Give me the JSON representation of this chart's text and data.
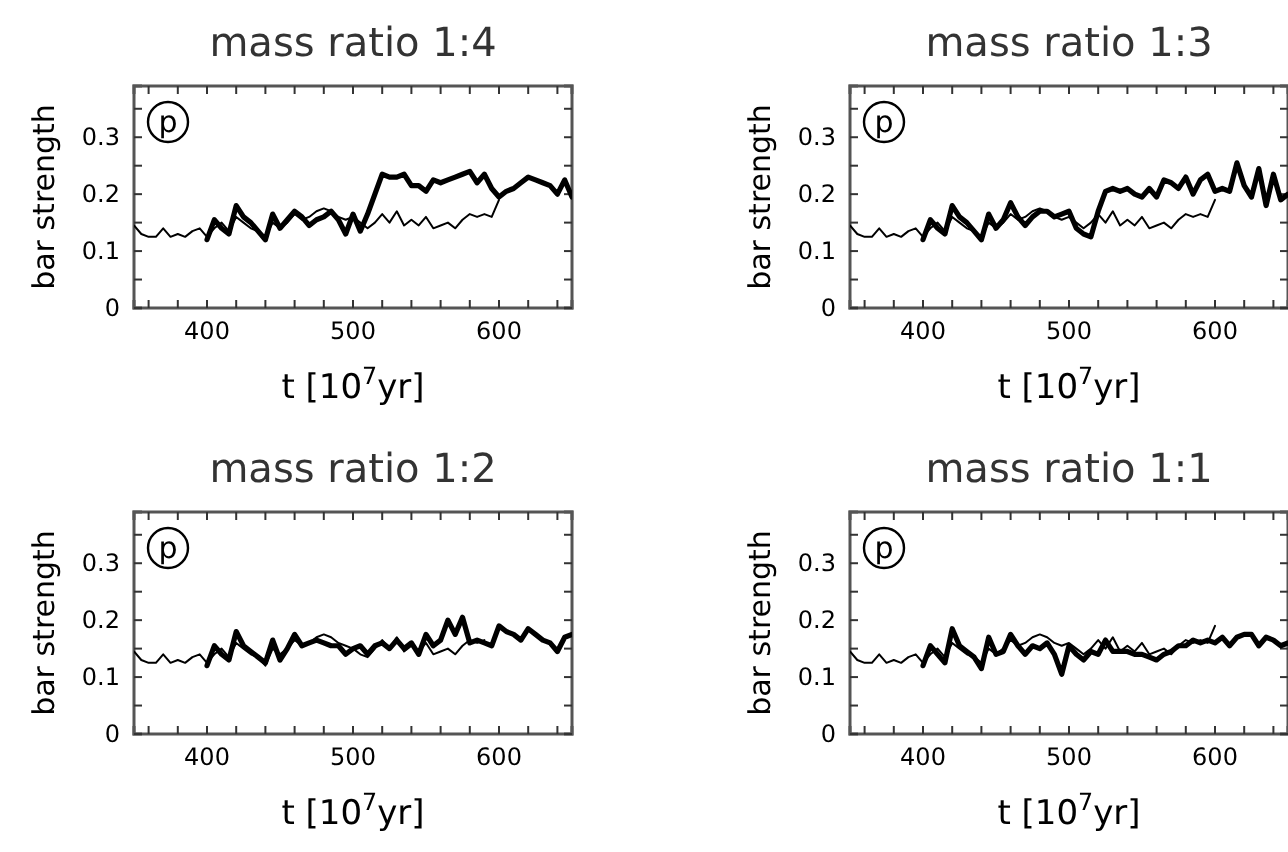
{
  "chart_data": [
    {
      "type": "line",
      "title": "mass ratio 1:4",
      "xlabel": "t [10$^{7}$yr]",
      "ylabel": "bar strength",
      "annotations": [
        "p"
      ],
      "xlim": [
        350,
        650
      ],
      "ylim": [
        0,
        0.39
      ],
      "xticks": [
        {
          "value": 360,
          "label": null
        },
        {
          "value": 380,
          "label": null
        },
        400,
        {
          "value": 420,
          "label": null
        },
        {
          "value": 440,
          "label": null
        },
        {
          "value": 460,
          "label": null
        },
        {
          "value": 480,
          "label": null
        },
        500,
        {
          "value": 520,
          "label": null
        },
        {
          "value": 540,
          "label": null
        },
        {
          "value": 560,
          "label": null
        },
        {
          "value": 580,
          "label": null
        },
        600,
        {
          "value": 620,
          "label": null
        },
        {
          "value": 640,
          "label": null
        }
      ],
      "yticks": [
        0,
        {
          "value": 0.05,
          "label": null
        },
        0.1,
        {
          "value": 0.15,
          "label": null
        },
        0.2,
        {
          "value": 0.25,
          "label": null
        },
        0.3,
        {
          "value": 0.35,
          "label": null
        }
      ],
      "grid": false,
      "marker": "none",
      "line_style": "solid",
      "series": [
        {
          "color": "#000000",
          "x": [
            350,
            355,
            360,
            365,
            370,
            375,
            380,
            385,
            390,
            395,
            400,
            405,
            410,
            415,
            420,
            425,
            430,
            435,
            440,
            445,
            450,
            455,
            460,
            465,
            470,
            475,
            480,
            485,
            490,
            495,
            500,
            505,
            510,
            515,
            520,
            525,
            530,
            535,
            540,
            545,
            550,
            555,
            560,
            565,
            570,
            575,
            580,
            585,
            590,
            595,
            600
          ],
          "values": [
            0.145,
            0.13,
            0.125,
            0.125,
            0.14,
            0.125,
            0.13,
            0.125,
            0.135,
            0.14,
            0.125,
            0.14,
            0.15,
            0.135,
            0.16,
            0.15,
            0.14,
            0.135,
            0.125,
            0.15,
            0.14,
            0.15,
            0.165,
            0.155,
            0.16,
            0.17,
            0.175,
            0.17,
            0.16,
            0.155,
            0.16,
            0.15,
            0.14,
            0.15,
            0.165,
            0.15,
            0.17,
            0.145,
            0.155,
            0.145,
            0.16,
            0.14,
            0.145,
            0.15,
            0.14,
            0.155,
            0.165,
            0.16,
            0.165,
            0.16,
            0.19
          ]
        },
        {
          "color": "#000000",
          "x": [
            400,
            405,
            410,
            415,
            420,
            425,
            430,
            435,
            440,
            445,
            450,
            455,
            460,
            465,
            470,
            475,
            480,
            485,
            490,
            495,
            500,
            505,
            510,
            515,
            520,
            525,
            530,
            535,
            540,
            545,
            550,
            555,
            560,
            565,
            570,
            575,
            580,
            585,
            590,
            595,
            600,
            605,
            610,
            615,
            620,
            625,
            630,
            635,
            640,
            645,
            650
          ],
          "values": [
            0.12,
            0.155,
            0.14,
            0.13,
            0.18,
            0.16,
            0.15,
            0.135,
            0.12,
            0.165,
            0.14,
            0.155,
            0.17,
            0.16,
            0.145,
            0.155,
            0.16,
            0.17,
            0.155,
            0.13,
            0.165,
            0.135,
            0.165,
            0.2,
            0.235,
            0.23,
            0.23,
            0.235,
            0.215,
            0.215,
            0.205,
            0.225,
            0.22,
            0.225,
            0.23,
            0.235,
            0.24,
            0.22,
            0.235,
            0.21,
            0.195,
            0.205,
            0.21,
            0.22,
            0.23,
            0.225,
            0.22,
            0.215,
            0.2,
            0.225,
            0.195
          ]
        }
      ]
    },
    {
      "type": "line",
      "title": "mass ratio 1:3",
      "xlabel": "t [10$^{7}$yr]",
      "ylabel": "bar strength",
      "annotations": [
        "p"
      ],
      "xlim": [
        350,
        650
      ],
      "ylim": [
        0,
        0.39
      ],
      "xticks": [
        {
          "value": 360,
          "label": null
        },
        {
          "value": 380,
          "label": null
        },
        400,
        {
          "value": 420,
          "label": null
        },
        {
          "value": 440,
          "label": null
        },
        {
          "value": 460,
          "label": null
        },
        {
          "value": 480,
          "label": null
        },
        500,
        {
          "value": 520,
          "label": null
        },
        {
          "value": 540,
          "label": null
        },
        {
          "value": 560,
          "label": null
        },
        {
          "value": 580,
          "label": null
        },
        600,
        {
          "value": 620,
          "label": null
        },
        {
          "value": 640,
          "label": null
        }
      ],
      "yticks": [
        0,
        {
          "value": 0.05,
          "label": null
        },
        0.1,
        {
          "value": 0.15,
          "label": null
        },
        0.2,
        {
          "value": 0.25,
          "label": null
        },
        0.3,
        {
          "value": 0.35,
          "label": null
        }
      ],
      "grid": false,
      "marker": "none",
      "line_style": "solid",
      "series": [
        {
          "color": "#000000",
          "x": [
            350,
            355,
            360,
            365,
            370,
            375,
            380,
            385,
            390,
            395,
            400,
            405,
            410,
            415,
            420,
            425,
            430,
            435,
            440,
            445,
            450,
            455,
            460,
            465,
            470,
            475,
            480,
            485,
            490,
            495,
            500,
            505,
            510,
            515,
            520,
            525,
            530,
            535,
            540,
            545,
            550,
            555,
            560,
            565,
            570,
            575,
            580,
            585,
            590,
            595,
            600
          ],
          "values": [
            0.145,
            0.13,
            0.125,
            0.125,
            0.14,
            0.125,
            0.13,
            0.125,
            0.135,
            0.14,
            0.125,
            0.14,
            0.15,
            0.135,
            0.16,
            0.15,
            0.14,
            0.135,
            0.125,
            0.15,
            0.14,
            0.15,
            0.165,
            0.155,
            0.16,
            0.17,
            0.175,
            0.17,
            0.16,
            0.155,
            0.16,
            0.15,
            0.14,
            0.15,
            0.165,
            0.15,
            0.17,
            0.145,
            0.155,
            0.145,
            0.16,
            0.14,
            0.145,
            0.15,
            0.14,
            0.155,
            0.165,
            0.16,
            0.165,
            0.16,
            0.19
          ]
        },
        {
          "color": "#000000",
          "x": [
            400,
            405,
            410,
            415,
            420,
            425,
            430,
            435,
            440,
            445,
            450,
            455,
            460,
            465,
            470,
            475,
            480,
            485,
            490,
            495,
            500,
            505,
            510,
            515,
            520,
            525,
            530,
            535,
            540,
            545,
            550,
            555,
            560,
            565,
            570,
            575,
            580,
            585,
            590,
            595,
            600,
            605,
            610,
            615,
            620,
            625,
            630,
            635,
            640,
            645,
            650
          ],
          "values": [
            0.12,
            0.155,
            0.14,
            0.13,
            0.18,
            0.16,
            0.15,
            0.135,
            0.12,
            0.165,
            0.14,
            0.155,
            0.185,
            0.16,
            0.145,
            0.16,
            0.17,
            0.17,
            0.16,
            0.165,
            0.17,
            0.14,
            0.13,
            0.125,
            0.17,
            0.205,
            0.21,
            0.205,
            0.21,
            0.2,
            0.195,
            0.21,
            0.195,
            0.225,
            0.22,
            0.21,
            0.23,
            0.2,
            0.225,
            0.235,
            0.205,
            0.21,
            0.205,
            0.255,
            0.215,
            0.195,
            0.245,
            0.18,
            0.235,
            0.19,
            0.2
          ]
        }
      ]
    },
    {
      "type": "line",
      "title": "mass ratio 1:2",
      "xlabel": "t [10$^{7}$yr]",
      "ylabel": "bar strength",
      "annotations": [
        "p"
      ],
      "xlim": [
        350,
        650
      ],
      "ylim": [
        0,
        0.39
      ],
      "xticks": [
        {
          "value": 360,
          "label": null
        },
        {
          "value": 380,
          "label": null
        },
        400,
        {
          "value": 420,
          "label": null
        },
        {
          "value": 440,
          "label": null
        },
        {
          "value": 460,
          "label": null
        },
        {
          "value": 480,
          "label": null
        },
        500,
        {
          "value": 520,
          "label": null
        },
        {
          "value": 540,
          "label": null
        },
        {
          "value": 560,
          "label": null
        },
        {
          "value": 580,
          "label": null
        },
        600,
        {
          "value": 620,
          "label": null
        },
        {
          "value": 640,
          "label": null
        }
      ],
      "yticks": [
        0,
        {
          "value": 0.05,
          "label": null
        },
        0.1,
        {
          "value": 0.15,
          "label": null
        },
        0.2,
        {
          "value": 0.25,
          "label": null
        },
        0.3,
        {
          "value": 0.35,
          "label": null
        }
      ],
      "grid": false,
      "marker": "none",
      "line_style": "solid",
      "series": [
        {
          "color": "#000000",
          "x": [
            350,
            355,
            360,
            365,
            370,
            375,
            380,
            385,
            390,
            395,
            400,
            405,
            410,
            415,
            420,
            425,
            430,
            435,
            440,
            445,
            450,
            455,
            460,
            465,
            470,
            475,
            480,
            485,
            490,
            495,
            500,
            505,
            510,
            515,
            520,
            525,
            530,
            535,
            540,
            545,
            550,
            555,
            560,
            565,
            570,
            575,
            580,
            585,
            590
          ],
          "values": [
            0.145,
            0.13,
            0.125,
            0.125,
            0.14,
            0.125,
            0.13,
            0.125,
            0.135,
            0.14,
            0.125,
            0.14,
            0.15,
            0.135,
            0.16,
            0.15,
            0.14,
            0.135,
            0.12,
            0.15,
            0.14,
            0.15,
            0.165,
            0.155,
            0.16,
            0.17,
            0.175,
            0.17,
            0.16,
            0.155,
            0.15,
            0.14,
            0.135,
            0.15,
            0.165,
            0.15,
            0.17,
            0.145,
            0.155,
            0.145,
            0.16,
            0.14,
            0.145,
            0.15,
            0.14,
            0.155,
            0.165,
            0.16,
            0.165
          ]
        },
        {
          "color": "#000000",
          "x": [
            400,
            405,
            410,
            415,
            420,
            425,
            430,
            435,
            440,
            445,
            450,
            455,
            460,
            465,
            470,
            475,
            480,
            485,
            490,
            495,
            500,
            505,
            510,
            515,
            520,
            525,
            530,
            535,
            540,
            545,
            550,
            555,
            560,
            565,
            570,
            575,
            580,
            585,
            590,
            595,
            600,
            605,
            610,
            615,
            620,
            625,
            630,
            635,
            640,
            645,
            650
          ],
          "values": [
            0.12,
            0.155,
            0.14,
            0.13,
            0.18,
            0.155,
            0.145,
            0.135,
            0.125,
            0.165,
            0.13,
            0.15,
            0.175,
            0.155,
            0.16,
            0.165,
            0.16,
            0.155,
            0.155,
            0.14,
            0.15,
            0.155,
            0.14,
            0.155,
            0.16,
            0.15,
            0.165,
            0.15,
            0.16,
            0.14,
            0.175,
            0.155,
            0.165,
            0.2,
            0.175,
            0.205,
            0.16,
            0.165,
            0.16,
            0.155,
            0.19,
            0.18,
            0.175,
            0.165,
            0.185,
            0.175,
            0.165,
            0.16,
            0.145,
            0.17,
            0.175
          ]
        }
      ]
    },
    {
      "type": "line",
      "title": "mass ratio 1:1",
      "xlabel": "t [10$^{7}$yr]",
      "ylabel": "bar strength",
      "annotations": [
        "p"
      ],
      "xlim": [
        350,
        650
      ],
      "ylim": [
        0,
        0.39
      ],
      "xticks": [
        {
          "value": 360,
          "label": null
        },
        {
          "value": 380,
          "label": null
        },
        400,
        {
          "value": 420,
          "label": null
        },
        {
          "value": 440,
          "label": null
        },
        {
          "value": 460,
          "label": null
        },
        {
          "value": 480,
          "label": null
        },
        500,
        {
          "value": 520,
          "label": null
        },
        {
          "value": 540,
          "label": null
        },
        {
          "value": 560,
          "label": null
        },
        {
          "value": 580,
          "label": null
        },
        600,
        {
          "value": 620,
          "label": null
        },
        {
          "value": 640,
          "label": null
        }
      ],
      "yticks": [
        0,
        {
          "value": 0.05,
          "label": null
        },
        0.1,
        {
          "value": 0.15,
          "label": null
        },
        0.2,
        {
          "value": 0.25,
          "label": null
        },
        0.3,
        {
          "value": 0.35,
          "label": null
        }
      ],
      "grid": false,
      "marker": "none",
      "line_style": "solid",
      "series": [
        {
          "color": "#000000",
          "x": [
            350,
            355,
            360,
            365,
            370,
            375,
            380,
            385,
            390,
            395,
            400,
            405,
            410,
            415,
            420,
            425,
            430,
            435,
            440,
            445,
            450,
            455,
            460,
            465,
            470,
            475,
            480,
            485,
            490,
            495,
            500,
            505,
            510,
            515,
            520,
            525,
            530,
            535,
            540,
            545,
            550,
            555,
            560,
            565,
            570,
            575,
            580,
            585,
            590,
            595,
            600
          ],
          "values": [
            0.145,
            0.13,
            0.125,
            0.125,
            0.14,
            0.125,
            0.13,
            0.125,
            0.135,
            0.14,
            0.125,
            0.14,
            0.15,
            0.135,
            0.16,
            0.15,
            0.14,
            0.135,
            0.125,
            0.15,
            0.14,
            0.15,
            0.165,
            0.155,
            0.16,
            0.17,
            0.175,
            0.17,
            0.16,
            0.155,
            0.16,
            0.15,
            0.14,
            0.15,
            0.165,
            0.15,
            0.17,
            0.145,
            0.155,
            0.145,
            0.16,
            0.14,
            0.145,
            0.15,
            0.14,
            0.155,
            0.165,
            0.16,
            0.165,
            0.16,
            0.19
          ]
        },
        {
          "color": "#000000",
          "x": [
            400,
            405,
            410,
            415,
            420,
            425,
            430,
            435,
            440,
            445,
            450,
            455,
            460,
            465,
            470,
            475,
            480,
            485,
            490,
            495,
            500,
            505,
            510,
            515,
            520,
            525,
            530,
            535,
            540,
            545,
            550,
            555,
            560,
            565,
            570,
            575,
            580,
            585,
            590,
            595,
            600,
            605,
            610,
            615,
            620,
            625,
            630,
            635,
            640,
            645,
            650
          ],
          "values": [
            0.12,
            0.155,
            0.14,
            0.125,
            0.185,
            0.155,
            0.145,
            0.135,
            0.115,
            0.17,
            0.14,
            0.145,
            0.175,
            0.155,
            0.14,
            0.155,
            0.15,
            0.16,
            0.14,
            0.105,
            0.155,
            0.14,
            0.13,
            0.145,
            0.14,
            0.165,
            0.145,
            0.145,
            0.145,
            0.14,
            0.14,
            0.135,
            0.13,
            0.14,
            0.145,
            0.155,
            0.155,
            0.165,
            0.16,
            0.165,
            0.16,
            0.17,
            0.155,
            0.17,
            0.175,
            0.175,
            0.155,
            0.17,
            0.165,
            0.155,
            0.16
          ]
        }
      ]
    }
  ]
}
